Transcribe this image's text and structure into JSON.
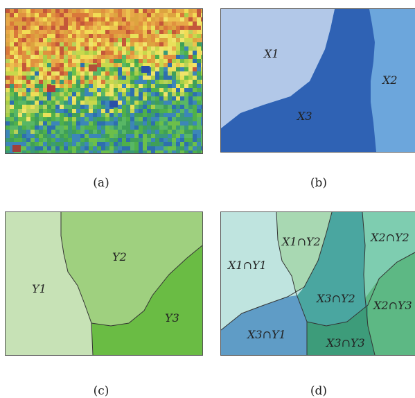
{
  "captions": {
    "a": "(a)",
    "b": "(b)",
    "c": "(c)",
    "d": "(d)"
  },
  "panel_b": {
    "x1": "X1",
    "x2": "X2",
    "x3": "X3"
  },
  "panel_c": {
    "y1": "Y1",
    "y2": "Y2",
    "y3": "Y3"
  },
  "panel_d": {
    "x1y1": "X1∩Y1",
    "x1y2": "X1∩Y2",
    "x2y2_top": "X2∩Y2",
    "x3y2": "X3∩Y2",
    "x2y3": "X2∩Y3",
    "x3y1": "X3∩Y1",
    "x3y3": "X3∩Y3"
  },
  "colors": {
    "b_x1": "#b2c8e8",
    "b_x2": "#6ca6dc",
    "b_x3": "#2f62b4",
    "c_y1": "#c7e2b6",
    "c_y2": "#9fd07f",
    "c_y3": "#6abc44",
    "d_x1y1": "#bfe4df",
    "d_x1y2": "#a8d8b2",
    "d_x3y2": "#4aa6a0",
    "d_x2y2": "#7ecdb0",
    "d_x2y3": "#5db884",
    "d_x3y1": "#5f9cc6",
    "d_x3y3": "#3d9c7a"
  }
}
